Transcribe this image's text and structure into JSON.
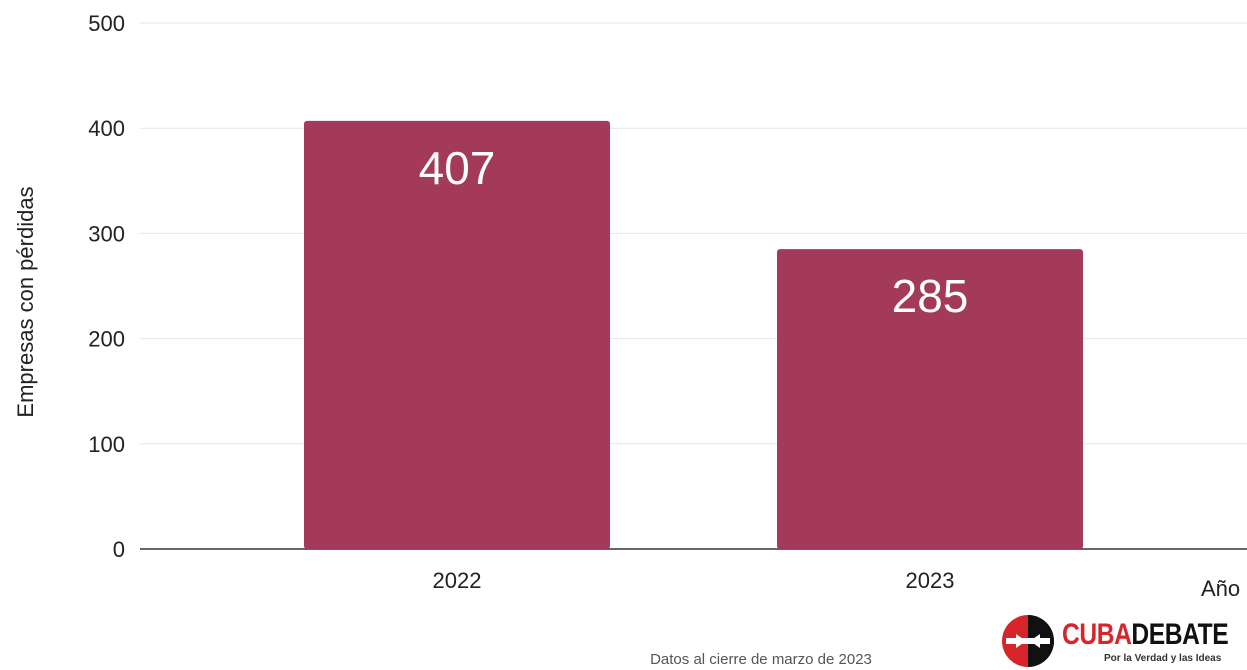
{
  "chart_data": {
    "type": "bar",
    "categories": [
      "2022",
      "2023"
    ],
    "values": [
      407,
      285
    ],
    "data_labels": [
      "407",
      "285"
    ],
    "title": "",
    "xlabel": "Año",
    "ylabel": "Empresas con pérdidas",
    "ylim": [
      0,
      500
    ],
    "yticks": [
      0,
      100,
      200,
      300,
      400,
      500
    ],
    "grid": true,
    "legend": "none",
    "bar_color": "#a33a5a"
  },
  "source_note": "Datos al cierre de marzo de 2023",
  "logo": {
    "name_red": "CUBA",
    "name_black": "DEBATE",
    "slogan": "Por la Verdad y las Ideas",
    "colors": {
      "red": "#d7262b",
      "black": "#111111"
    }
  }
}
